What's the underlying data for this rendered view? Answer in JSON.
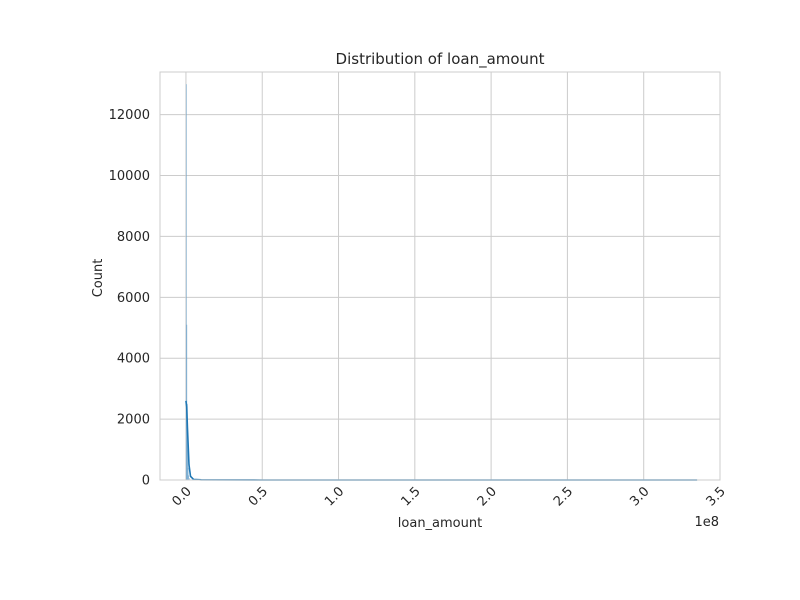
{
  "chart_data": {
    "type": "bar",
    "title": "Distribution of loan_amount",
    "xlabel": "loan_amount",
    "ylabel": "Count",
    "x_offset_label": "1e8",
    "xlim": [
      -0.17,
      3.5
    ],
    "ylim": [
      0,
      13400
    ],
    "grid": true,
    "x_ticks": [
      {
        "value": 0.0,
        "label": "0.0"
      },
      {
        "value": 0.5,
        "label": "0.5"
      },
      {
        "value": 1.0,
        "label": "1.0"
      },
      {
        "value": 1.5,
        "label": "1.5"
      },
      {
        "value": 2.0,
        "label": "2.0"
      },
      {
        "value": 2.5,
        "label": "2.5"
      },
      {
        "value": 3.0,
        "label": "3.0"
      },
      {
        "value": 3.5,
        "label": "3.5"
      }
    ],
    "y_ticks": [
      {
        "value": 0,
        "label": "0"
      },
      {
        "value": 2000,
        "label": "2000"
      },
      {
        "value": 4000,
        "label": "4000"
      },
      {
        "value": 6000,
        "label": "6000"
      },
      {
        "value": 8000,
        "label": "8000"
      },
      {
        "value": 10000,
        "label": "10000"
      },
      {
        "value": 12000,
        "label": "12000"
      }
    ],
    "histogram": {
      "bin_width": 0.003,
      "bins": [
        {
          "x": 0.0,
          "count": 13000
        },
        {
          "x": 0.003,
          "count": 5100
        },
        {
          "x": 0.006,
          "count": 2500
        },
        {
          "x": 0.009,
          "count": 1000
        },
        {
          "x": 0.012,
          "count": 400
        },
        {
          "x": 0.015,
          "count": 150
        },
        {
          "x": 0.02,
          "count": 60
        },
        {
          "x": 0.03,
          "count": 20
        }
      ]
    },
    "kde": {
      "x": [
        0.0,
        0.005,
        0.01,
        0.02,
        0.03,
        0.05,
        0.1,
        0.5,
        1.0,
        2.0,
        3.0,
        3.35
      ],
      "y": [
        2600,
        2400,
        1700,
        500,
        120,
        20,
        5,
        0,
        0,
        0,
        0,
        0
      ]
    },
    "colors": {
      "bar": "#4c92c3",
      "kde": "#1f77b4",
      "grid": "#cccccc",
      "spine": "#cccccc"
    }
  }
}
